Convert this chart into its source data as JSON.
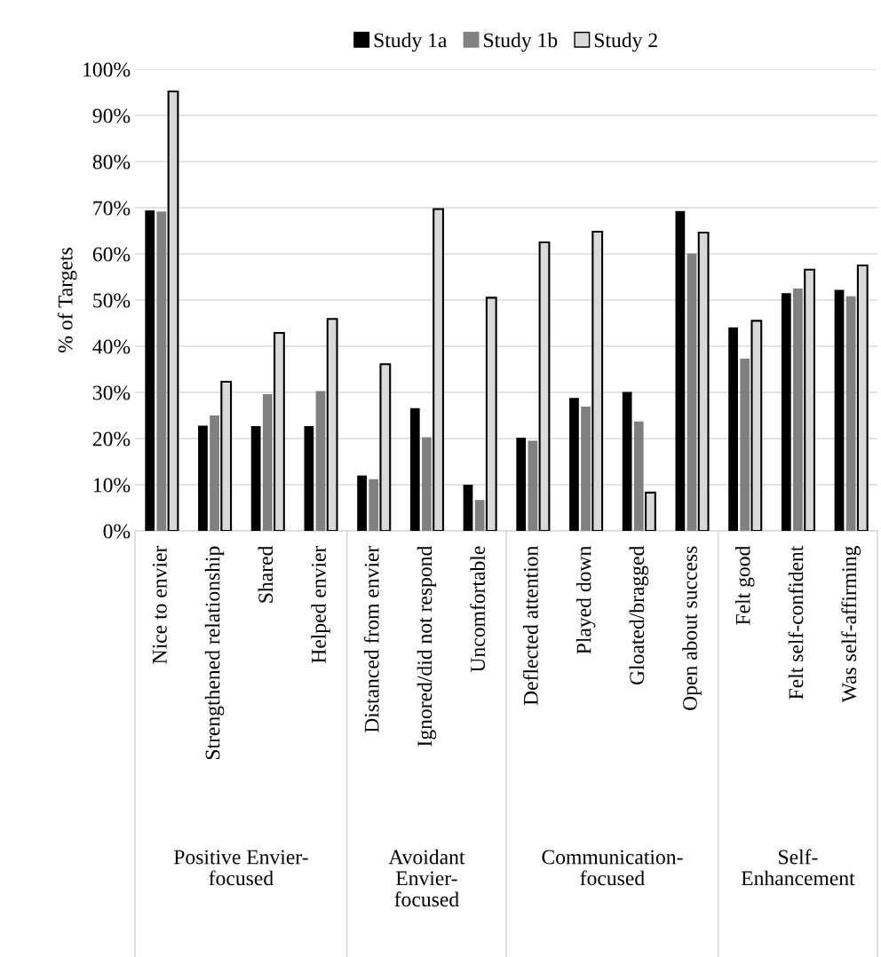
{
  "chart_data": {
    "type": "bar",
    "ylabel": "% of Targets",
    "categories": [
      "Nice to envier",
      "Strengthened relationship",
      "Shared",
      "Helped envier",
      "Distanced from envier",
      "Ignored/did not respond",
      "Uncomfortable",
      "Deflected attention",
      "Played down",
      "Gloated/bragged",
      "Open about success",
      "Felt good",
      "Felt self-confident",
      "Was self-affirming"
    ],
    "series": [
      {
        "name": "Study 1a",
        "color": "#000000",
        "values": [
          69.4,
          22.8,
          22.7,
          22.7,
          12.0,
          26.6,
          10.0,
          20.2,
          28.8,
          30.1,
          69.3,
          44.1,
          51.5,
          52.2
        ]
      },
      {
        "name": "Study 1b",
        "color": "#808080",
        "values": [
          69.2,
          25.0,
          29.6,
          30.3,
          11.2,
          20.3,
          6.7,
          19.5,
          26.9,
          23.7,
          60.1,
          37.3,
          52.5,
          50.8
        ]
      },
      {
        "name": "Study 2",
        "color": "#d9d9d9",
        "values": [
          95.2,
          32.3,
          42.9,
          45.9,
          36.1,
          69.7,
          50.5,
          62.5,
          64.8,
          8.3,
          64.6,
          45.5,
          56.6,
          57.5
        ]
      }
    ],
    "ylim": [
      0,
      100
    ],
    "yticks": [
      {
        "value": 0,
        "label": "0%"
      },
      {
        "value": 10,
        "label": "10%"
      },
      {
        "value": 20,
        "label": "20%"
      },
      {
        "value": 30,
        "label": "30%"
      },
      {
        "value": 40,
        "label": "40%"
      },
      {
        "value": 50,
        "label": "50%"
      },
      {
        "value": 60,
        "label": "60%"
      },
      {
        "value": 70,
        "label": "70%"
      },
      {
        "value": 80,
        "label": "80%"
      },
      {
        "value": 90,
        "label": "90%"
      },
      {
        "value": 100,
        "label": "100%"
      }
    ],
    "grid": "y",
    "legend": "top",
    "annotations": [
      "Positive Envier-\nfocused",
      "Avoidant\nEnvier-\nfocused",
      "Communication-\nfocused",
      "Self-\nEnhancement"
    ]
  }
}
